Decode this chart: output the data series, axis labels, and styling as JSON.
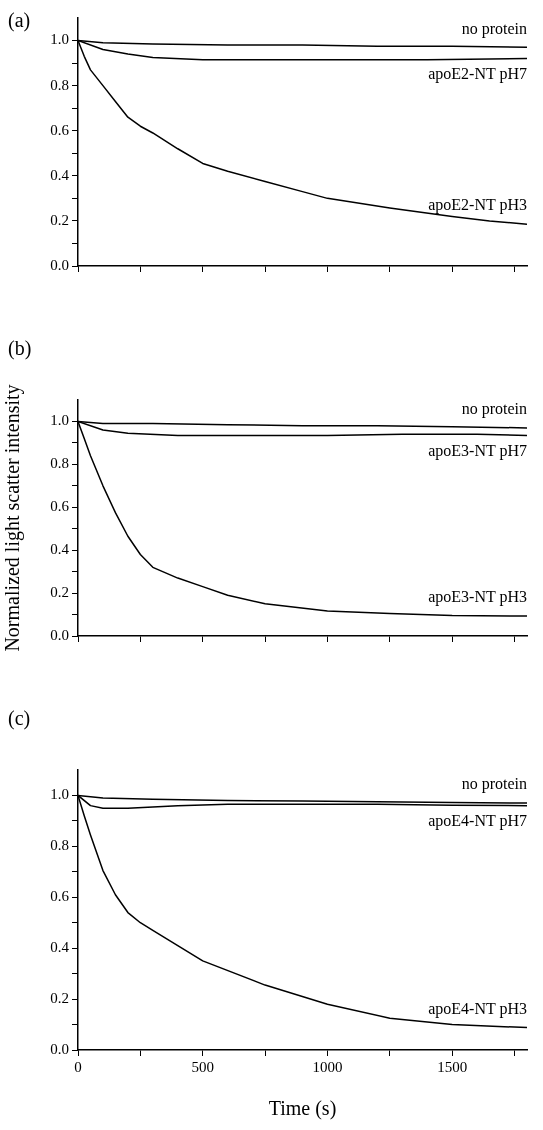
{
  "chart_data": [
    {
      "type": "line",
      "title": "(a)",
      "xlim": [
        0,
        1800
      ],
      "ylim": [
        0,
        1.1
      ],
      "tick_labels": "y",
      "grid": false,
      "legend": false,
      "marker": "none",
      "line_style": "solid",
      "xticks": [
        {
          "value": 0,
          "label": null
        },
        {
          "value": 250,
          "label": null
        },
        {
          "value": 500,
          "label": null
        },
        {
          "value": 750,
          "label": null
        },
        {
          "value": 1000,
          "label": null
        },
        {
          "value": 1250,
          "label": null
        },
        {
          "value": 1500,
          "label": null
        },
        {
          "value": 1750,
          "label": null
        }
      ],
      "yticks": [
        {
          "value": 0,
          "label": "0.0"
        },
        {
          "value": 0.1,
          "label": null
        },
        {
          "value": 0.2,
          "label": "0.2"
        },
        {
          "value": 0.3,
          "label": null
        },
        {
          "value": 0.4,
          "label": "0.4"
        },
        {
          "value": 0.5,
          "label": null
        },
        {
          "value": 0.6,
          "label": "0.6"
        },
        {
          "value": 0.7,
          "label": null
        },
        {
          "value": 0.8,
          "label": "0.8"
        },
        {
          "value": 0.9,
          "label": null
        },
        {
          "value": 1,
          "label": "1.0"
        }
      ],
      "series": [
        {
          "name": "no protein",
          "color": "#000000",
          "x": [
            0,
            100,
            300,
            600,
            900,
            1200,
            1500,
            1800
          ],
          "values": [
            1.0,
            0.99,
            0.985,
            0.98,
            0.98,
            0.975,
            0.975,
            0.97
          ]
        },
        {
          "name": "apoE2-NT pH7",
          "color": "#000000",
          "x": [
            0,
            100,
            200,
            300,
            500,
            800,
            1100,
            1400,
            1800
          ],
          "values": [
            1.0,
            0.96,
            0.94,
            0.925,
            0.915,
            0.915,
            0.915,
            0.915,
            0.92
          ]
        },
        {
          "name": "apoE2-NT pH3",
          "color": "#000000",
          "x": [
            0,
            25,
            50,
            100,
            150,
            200,
            250,
            300,
            400,
            500,
            600,
            750,
            900,
            1000,
            1250,
            1500,
            1650,
            1800
          ],
          "values": [
            1.0,
            0.93,
            0.87,
            0.8,
            0.73,
            0.66,
            0.62,
            0.59,
            0.52,
            0.455,
            0.42,
            0.375,
            0.33,
            0.3,
            0.257,
            0.22,
            0.2,
            0.185
          ]
        }
      ]
    },
    {
      "type": "line",
      "title": "(b)",
      "ylabel": "Normalized light scatter intensity",
      "xlim": [
        0,
        1800
      ],
      "ylim": [
        0,
        1.1
      ],
      "tick_labels": "y",
      "grid": false,
      "legend": false,
      "marker": "none",
      "line_style": "solid",
      "xticks": [
        {
          "value": 0,
          "label": null
        },
        {
          "value": 250,
          "label": null
        },
        {
          "value": 500,
          "label": null
        },
        {
          "value": 750,
          "label": null
        },
        {
          "value": 1000,
          "label": null
        },
        {
          "value": 1250,
          "label": null
        },
        {
          "value": 1500,
          "label": null
        },
        {
          "value": 1750,
          "label": null
        }
      ],
      "yticks": [
        {
          "value": 0,
          "label": "0.0"
        },
        {
          "value": 0.1,
          "label": null
        },
        {
          "value": 0.2,
          "label": "0.2"
        },
        {
          "value": 0.3,
          "label": null
        },
        {
          "value": 0.4,
          "label": "0.4"
        },
        {
          "value": 0.5,
          "label": null
        },
        {
          "value": 0.6,
          "label": "0.6"
        },
        {
          "value": 0.7,
          "label": null
        },
        {
          "value": 0.8,
          "label": "0.8"
        },
        {
          "value": 0.9,
          "label": null
        },
        {
          "value": 1,
          "label": "1.0"
        }
      ],
      "series": [
        {
          "name": "no protein",
          "color": "#000000",
          "x": [
            0,
            100,
            300,
            600,
            900,
            1200,
            1500,
            1800
          ],
          "values": [
            1.0,
            0.99,
            0.99,
            0.985,
            0.98,
            0.98,
            0.975,
            0.97
          ]
        },
        {
          "name": "apoE3-NT pH7",
          "color": "#000000",
          "x": [
            0,
            100,
            200,
            400,
            700,
            1000,
            1300,
            1600,
            1800
          ],
          "values": [
            1.0,
            0.96,
            0.945,
            0.935,
            0.935,
            0.935,
            0.94,
            0.94,
            0.935
          ]
        },
        {
          "name": "apoE3-NT pH3",
          "color": "#000000",
          "x": [
            0,
            25,
            50,
            100,
            150,
            200,
            250,
            300,
            400,
            500,
            600,
            750,
            1000,
            1250,
            1500,
            1800
          ],
          "values": [
            1.0,
            0.92,
            0.84,
            0.7,
            0.575,
            0.465,
            0.38,
            0.32,
            0.27,
            0.23,
            0.19,
            0.15,
            0.116,
            0.105,
            0.096,
            0.093
          ]
        }
      ]
    },
    {
      "type": "line",
      "title": "(c)",
      "xlabel": "Time (s)",
      "xlim": [
        0,
        1800
      ],
      "ylim": [
        0,
        1.1
      ],
      "grid": false,
      "legend": false,
      "marker": "none",
      "line_style": "solid",
      "xticks": [
        0,
        {
          "value": 250,
          "label": null
        },
        500,
        {
          "value": 750,
          "label": null
        },
        1000,
        {
          "value": 1250,
          "label": null
        },
        1500,
        {
          "value": 1750,
          "label": null
        }
      ],
      "yticks": [
        {
          "value": 0,
          "label": "0.0"
        },
        {
          "value": 0.1,
          "label": null
        },
        {
          "value": 0.2,
          "label": "0.2"
        },
        {
          "value": 0.3,
          "label": null
        },
        {
          "value": 0.4,
          "label": "0.4"
        },
        {
          "value": 0.5,
          "label": null
        },
        {
          "value": 0.6,
          "label": "0.6"
        },
        {
          "value": 0.7,
          "label": null
        },
        {
          "value": 0.8,
          "label": "0.8"
        },
        {
          "value": 0.9,
          "label": null
        },
        {
          "value": 1,
          "label": "1.0"
        }
      ],
      "series": [
        {
          "name": "no protein",
          "color": "#000000",
          "x": [
            0,
            100,
            300,
            600,
            900,
            1200,
            1500,
            1800
          ],
          "values": [
            1.0,
            0.99,
            0.985,
            0.98,
            0.978,
            0.975,
            0.972,
            0.97
          ]
        },
        {
          "name": "apoE4-NT pH7",
          "color": "#000000",
          "x": [
            0,
            50,
            100,
            200,
            300,
            400,
            600,
            900,
            1200,
            1500,
            1800
          ],
          "values": [
            1.0,
            0.96,
            0.95,
            0.95,
            0.955,
            0.96,
            0.965,
            0.965,
            0.965,
            0.962,
            0.96
          ]
        },
        {
          "name": "apoE4-NT pH3",
          "color": "#000000",
          "x": [
            0,
            25,
            50,
            100,
            150,
            200,
            250,
            300,
            400,
            500,
            750,
            1000,
            1250,
            1500,
            1800
          ],
          "values": [
            1.0,
            0.92,
            0.845,
            0.705,
            0.61,
            0.54,
            0.5,
            0.47,
            0.41,
            0.35,
            0.255,
            0.18,
            0.125,
            0.1,
            0.088
          ]
        }
      ]
    }
  ]
}
